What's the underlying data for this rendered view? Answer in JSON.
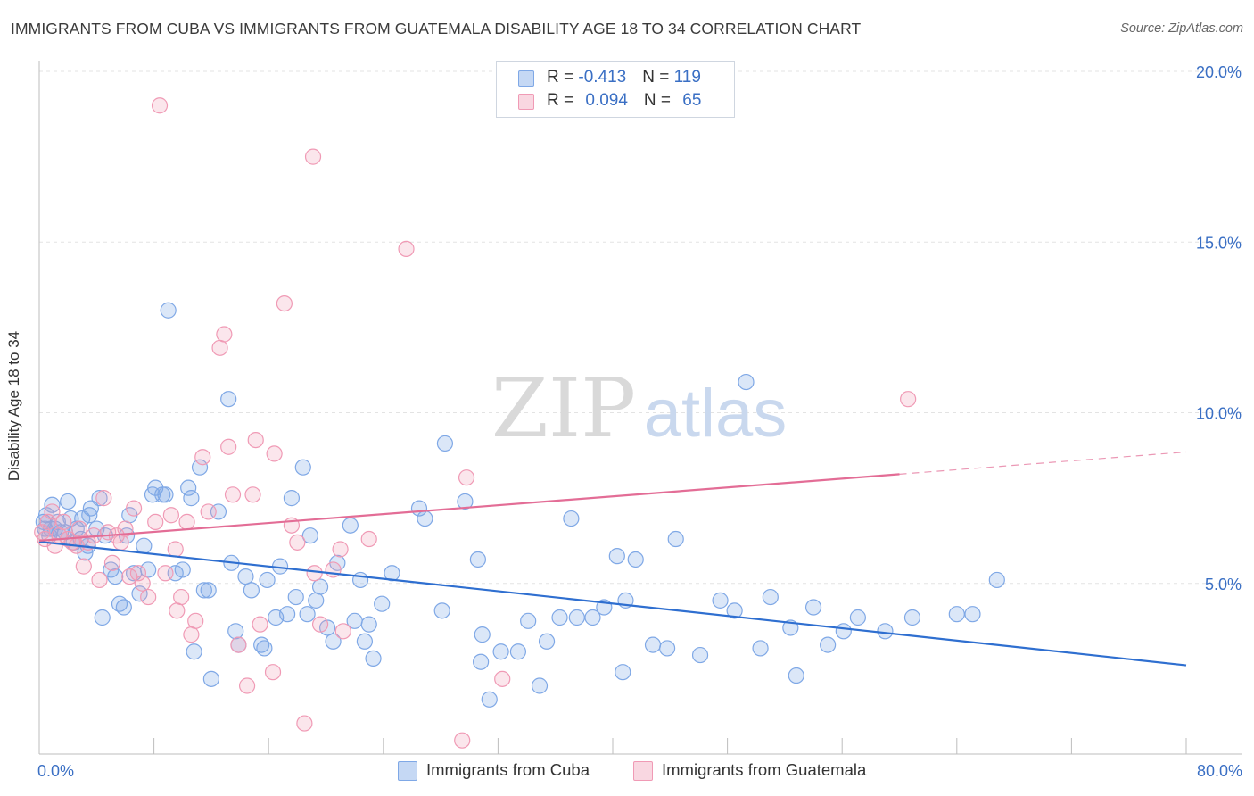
{
  "header": {
    "title": "IMMIGRANTS FROM CUBA VS IMMIGRANTS FROM GUATEMALA DISABILITY AGE 18 TO 34 CORRELATION CHART",
    "source": "Source: ZipAtlas.com"
  },
  "watermark": {
    "zip": "ZIP",
    "atlas": "atlas"
  },
  "legend": {
    "rows": [
      {
        "r_label": "R = ",
        "r_value": "-0.413",
        "n_label": "N = ",
        "n_value": "119",
        "color": "#7fa8e6"
      },
      {
        "r_label": "R = ",
        "r_value": "0.094",
        "n_label": "N = ",
        "n_value": "65",
        "color": "#f09ab5"
      }
    ]
  },
  "chart_data": {
    "type": "scatter",
    "title": "IMMIGRANTS FROM CUBA VS IMMIGRANTS FROM GUATEMALA DISABILITY AGE 18 TO 34 CORRELATION CHART",
    "xlabel": "",
    "ylabel": "Disability Age 18 to 34",
    "xlim": [
      0,
      80
    ],
    "ylim": [
      0,
      20
    ],
    "x_tick_labels": [
      "0.0%",
      "80.0%"
    ],
    "y_ticks": [
      5,
      10,
      15,
      20
    ],
    "y_tick_labels": [
      "5.0%",
      "10.0%",
      "15.0%",
      "20.0%"
    ],
    "grid": true,
    "legend_position": "bottom",
    "series": [
      {
        "name": "Immigrants from Cuba",
        "color": "#7fa8e6",
        "line_color": "#2f6fd0",
        "trend": {
          "x": [
            0,
            80
          ],
          "y": [
            6.22,
            2.6
          ]
        },
        "points": [
          [
            0.3,
            6.8
          ],
          [
            0.4,
            6.6
          ],
          [
            0.5,
            7.0
          ],
          [
            0.7,
            6.4
          ],
          [
            0.8,
            6.6
          ],
          [
            0.9,
            7.3
          ],
          [
            1.1,
            6.6
          ],
          [
            1.3,
            6.8
          ],
          [
            1.5,
            6.5
          ],
          [
            1.8,
            6.5
          ],
          [
            2.0,
            7.4
          ],
          [
            2.2,
            6.9
          ],
          [
            2.4,
            6.2
          ],
          [
            2.6,
            6.6
          ],
          [
            2.9,
            6.3
          ],
          [
            3.0,
            6.9
          ],
          [
            3.2,
            5.9
          ],
          [
            3.4,
            6.1
          ],
          [
            3.5,
            7.0
          ],
          [
            3.6,
            7.2
          ],
          [
            4.0,
            6.6
          ],
          [
            4.2,
            7.5
          ],
          [
            4.4,
            4.0
          ],
          [
            4.6,
            6.4
          ],
          [
            5.0,
            5.4
          ],
          [
            5.3,
            5.2
          ],
          [
            5.6,
            4.4
          ],
          [
            5.9,
            4.3
          ],
          [
            6.1,
            6.4
          ],
          [
            6.3,
            7.0
          ],
          [
            6.6,
            5.3
          ],
          [
            7.0,
            4.7
          ],
          [
            7.3,
            6.1
          ],
          [
            7.6,
            5.4
          ],
          [
            7.9,
            7.6
          ],
          [
            8.1,
            7.8
          ],
          [
            8.6,
            7.6
          ],
          [
            8.8,
            7.6
          ],
          [
            9.0,
            13.0
          ],
          [
            9.5,
            5.3
          ],
          [
            10.0,
            5.4
          ],
          [
            10.4,
            7.8
          ],
          [
            10.6,
            7.5
          ],
          [
            10.8,
            3.0
          ],
          [
            11.2,
            8.4
          ],
          [
            11.5,
            4.8
          ],
          [
            11.8,
            4.8
          ],
          [
            12.0,
            2.2
          ],
          [
            12.5,
            7.1
          ],
          [
            13.2,
            10.4
          ],
          [
            13.4,
            5.6
          ],
          [
            13.7,
            3.6
          ],
          [
            13.9,
            3.2
          ],
          [
            14.4,
            5.2
          ],
          [
            14.8,
            4.8
          ],
          [
            15.5,
            3.2
          ],
          [
            15.7,
            3.1
          ],
          [
            15.9,
            5.1
          ],
          [
            16.5,
            4.0
          ],
          [
            16.8,
            5.5
          ],
          [
            17.3,
            4.1
          ],
          [
            17.6,
            7.5
          ],
          [
            17.9,
            4.6
          ],
          [
            18.4,
            8.4
          ],
          [
            18.7,
            4.1
          ],
          [
            18.9,
            6.4
          ],
          [
            19.3,
            4.5
          ],
          [
            19.6,
            4.9
          ],
          [
            20.1,
            3.7
          ],
          [
            20.5,
            3.3
          ],
          [
            20.8,
            5.6
          ],
          [
            21.7,
            6.7
          ],
          [
            22.0,
            3.9
          ],
          [
            22.4,
            5.1
          ],
          [
            22.7,
            3.3
          ],
          [
            23.0,
            3.8
          ],
          [
            23.3,
            2.8
          ],
          [
            23.9,
            4.4
          ],
          [
            24.6,
            5.3
          ],
          [
            26.5,
            7.2
          ],
          [
            26.9,
            6.9
          ],
          [
            28.1,
            4.2
          ],
          [
            28.3,
            9.1
          ],
          [
            29.7,
            7.4
          ],
          [
            30.6,
            5.7
          ],
          [
            30.8,
            2.7
          ],
          [
            30.9,
            3.5
          ],
          [
            31.4,
            1.6
          ],
          [
            32.2,
            3.0
          ],
          [
            33.4,
            3.0
          ],
          [
            34.1,
            3.9
          ],
          [
            34.9,
            2.0
          ],
          [
            35.4,
            3.3
          ],
          [
            36.3,
            4.0
          ],
          [
            37.1,
            6.9
          ],
          [
            37.5,
            4.0
          ],
          [
            38.6,
            4.0
          ],
          [
            39.4,
            4.3
          ],
          [
            40.3,
            5.8
          ],
          [
            40.9,
            4.5
          ],
          [
            40.7,
            2.4
          ],
          [
            41.6,
            5.7
          ],
          [
            42.8,
            3.2
          ],
          [
            43.8,
            3.1
          ],
          [
            44.4,
            6.3
          ],
          [
            46.1,
            2.9
          ],
          [
            47.5,
            4.5
          ],
          [
            48.5,
            4.2
          ],
          [
            49.3,
            10.9
          ],
          [
            50.3,
            3.1
          ],
          [
            51.0,
            4.6
          ],
          [
            52.4,
            3.7
          ],
          [
            52.8,
            2.3
          ],
          [
            54.0,
            4.3
          ],
          [
            55.0,
            3.2
          ],
          [
            56.1,
            3.6
          ],
          [
            57.1,
            4.0
          ],
          [
            59.0,
            3.6
          ],
          [
            60.9,
            4.0
          ],
          [
            64.0,
            4.1
          ],
          [
            65.1,
            4.1
          ],
          [
            66.8,
            5.1
          ]
        ]
      },
      {
        "name": "Immigrants from Guatemala",
        "color": "#f09ab5",
        "line_color": "#e36d96",
        "trend": {
          "x": [
            0,
            60,
            80
          ],
          "y": [
            6.25,
            8.2,
            8.85
          ]
        },
        "points": [
          [
            0.2,
            6.5
          ],
          [
            0.4,
            6.3
          ],
          [
            0.6,
            6.8
          ],
          [
            0.9,
            7.1
          ],
          [
            1.1,
            6.1
          ],
          [
            1.4,
            6.4
          ],
          [
            1.7,
            6.8
          ],
          [
            2.0,
            6.3
          ],
          [
            2.3,
            6.2
          ],
          [
            2.6,
            6.1
          ],
          [
            2.8,
            6.6
          ],
          [
            3.1,
            5.5
          ],
          [
            3.4,
            6.2
          ],
          [
            3.8,
            6.4
          ],
          [
            4.2,
            5.1
          ],
          [
            4.5,
            7.5
          ],
          [
            4.8,
            6.5
          ],
          [
            5.1,
            5.6
          ],
          [
            5.4,
            6.4
          ],
          [
            5.7,
            6.2
          ],
          [
            6.0,
            6.6
          ],
          [
            6.3,
            5.2
          ],
          [
            6.6,
            7.2
          ],
          [
            6.9,
            5.3
          ],
          [
            7.2,
            5.0
          ],
          [
            7.6,
            4.6
          ],
          [
            8.1,
            6.8
          ],
          [
            8.4,
            19.0
          ],
          [
            8.8,
            5.3
          ],
          [
            9.2,
            7.0
          ],
          [
            9.6,
            4.2
          ],
          [
            9.9,
            4.6
          ],
          [
            10.3,
            6.8
          ],
          [
            10.6,
            3.5
          ],
          [
            10.9,
            3.9
          ],
          [
            11.4,
            8.7
          ],
          [
            11.8,
            7.1
          ],
          [
            12.6,
            11.9
          ],
          [
            12.9,
            12.3
          ],
          [
            13.2,
            9.0
          ],
          [
            13.5,
            7.6
          ],
          [
            13.9,
            3.2
          ],
          [
            14.5,
            2.0
          ],
          [
            14.9,
            7.6
          ],
          [
            15.1,
            9.2
          ],
          [
            15.4,
            3.8
          ],
          [
            16.3,
            2.4
          ],
          [
            16.4,
            8.8
          ],
          [
            17.1,
            13.2
          ],
          [
            17.6,
            6.7
          ],
          [
            18.5,
            0.9
          ],
          [
            19.1,
            17.5
          ],
          [
            19.2,
            5.3
          ],
          [
            19.6,
            3.8
          ],
          [
            20.5,
            5.4
          ],
          [
            21.2,
            3.6
          ],
          [
            25.6,
            14.8
          ],
          [
            29.8,
            8.1
          ],
          [
            29.5,
            0.4
          ],
          [
            32.3,
            2.2
          ],
          [
            60.6,
            10.4
          ],
          [
            23.0,
            6.3
          ],
          [
            21.0,
            6.0
          ],
          [
            18.0,
            6.2
          ],
          [
            9.5,
            6.0
          ]
        ]
      }
    ]
  }
}
